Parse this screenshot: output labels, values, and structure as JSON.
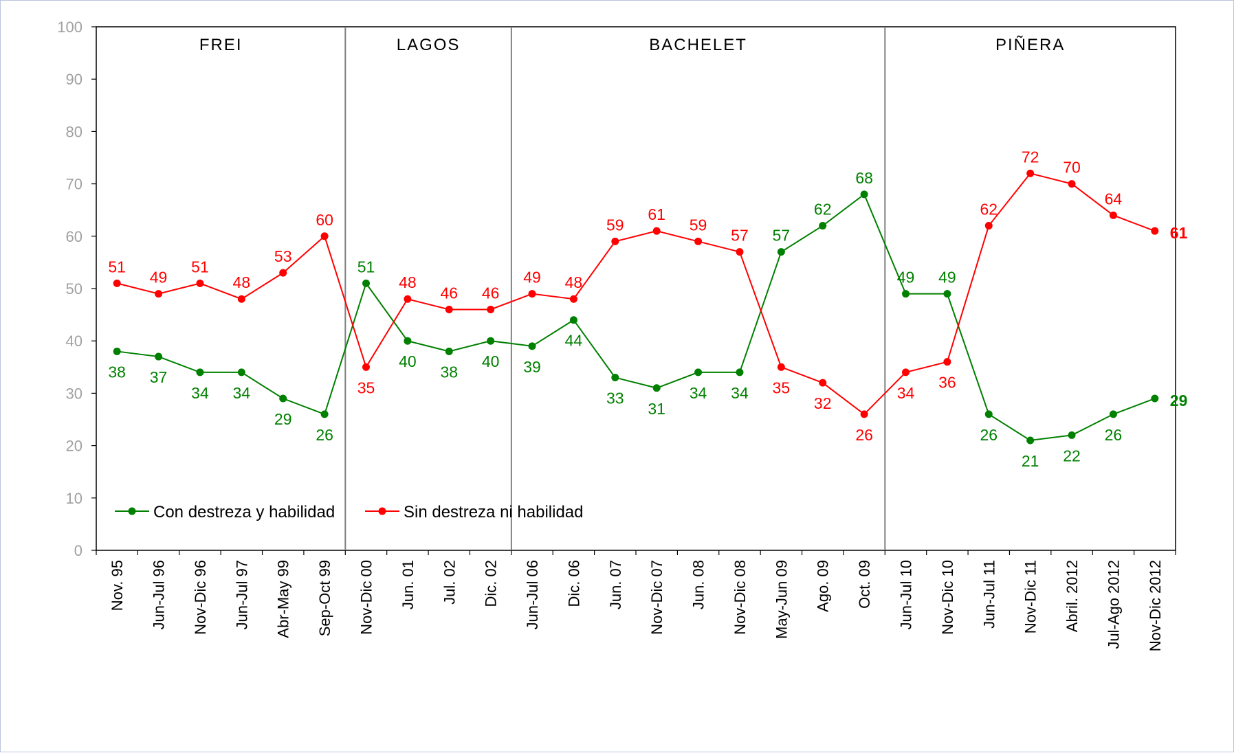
{
  "chart_data": {
    "type": "line",
    "title": "",
    "xlabel": "",
    "ylabel": "",
    "ylim": [
      0,
      100
    ],
    "yticks": [
      "0",
      "10",
      "20",
      "30",
      "40",
      "50",
      "60",
      "70",
      "80",
      "90",
      "100"
    ],
    "categories": [
      "Nov. 95",
      "Jun-Jul 96",
      "Nov-Dic 96",
      "Jun-Jul 97",
      "Abr-May 99",
      "Sep-Oct 99",
      "Nov-Dic 00",
      "Jun. 01",
      "Jul. 02",
      "Dic. 02",
      "Jun-Jul 06",
      "Dic. 06",
      "Jun. 07",
      "Nov-Dic 07",
      "Jun. 08",
      "Nov-Dic 08",
      "May-Jun 09",
      "Ago. 09",
      "Oct. 09",
      "Jun-Jul 10",
      "Nov-Dic 10",
      "Jun-Jul 11",
      "Nov-Dic 11",
      "Abril. 2012",
      "Jul-Ago 2012",
      "Nov-Dic 2012"
    ],
    "periods": [
      {
        "label": "FREI",
        "start": 0,
        "end": 5
      },
      {
        "label": "LAGOS",
        "start": 6,
        "end": 9
      },
      {
        "label": "BACHELET",
        "start": 10,
        "end": 18
      },
      {
        "label": "PIÑERA",
        "start": 19,
        "end": 25
      }
    ],
    "series": [
      {
        "name": "Con destreza y habilidad",
        "color": "#008000",
        "values": [
          38,
          37,
          34,
          34,
          29,
          26,
          51,
          40,
          38,
          40,
          39,
          44,
          33,
          31,
          34,
          34,
          57,
          62,
          68,
          49,
          49,
          26,
          21,
          22,
          26,
          29
        ]
      },
      {
        "name": "Sin destreza ni habilidad",
        "color": "#ff0000",
        "values": [
          51,
          49,
          51,
          48,
          53,
          60,
          35,
          48,
          46,
          46,
          49,
          48,
          59,
          61,
          59,
          57,
          35,
          32,
          26,
          34,
          36,
          62,
          72,
          70,
          64,
          61
        ]
      }
    ],
    "legend": "bottom-left",
    "grid": false,
    "last_value_emphasis": true
  }
}
